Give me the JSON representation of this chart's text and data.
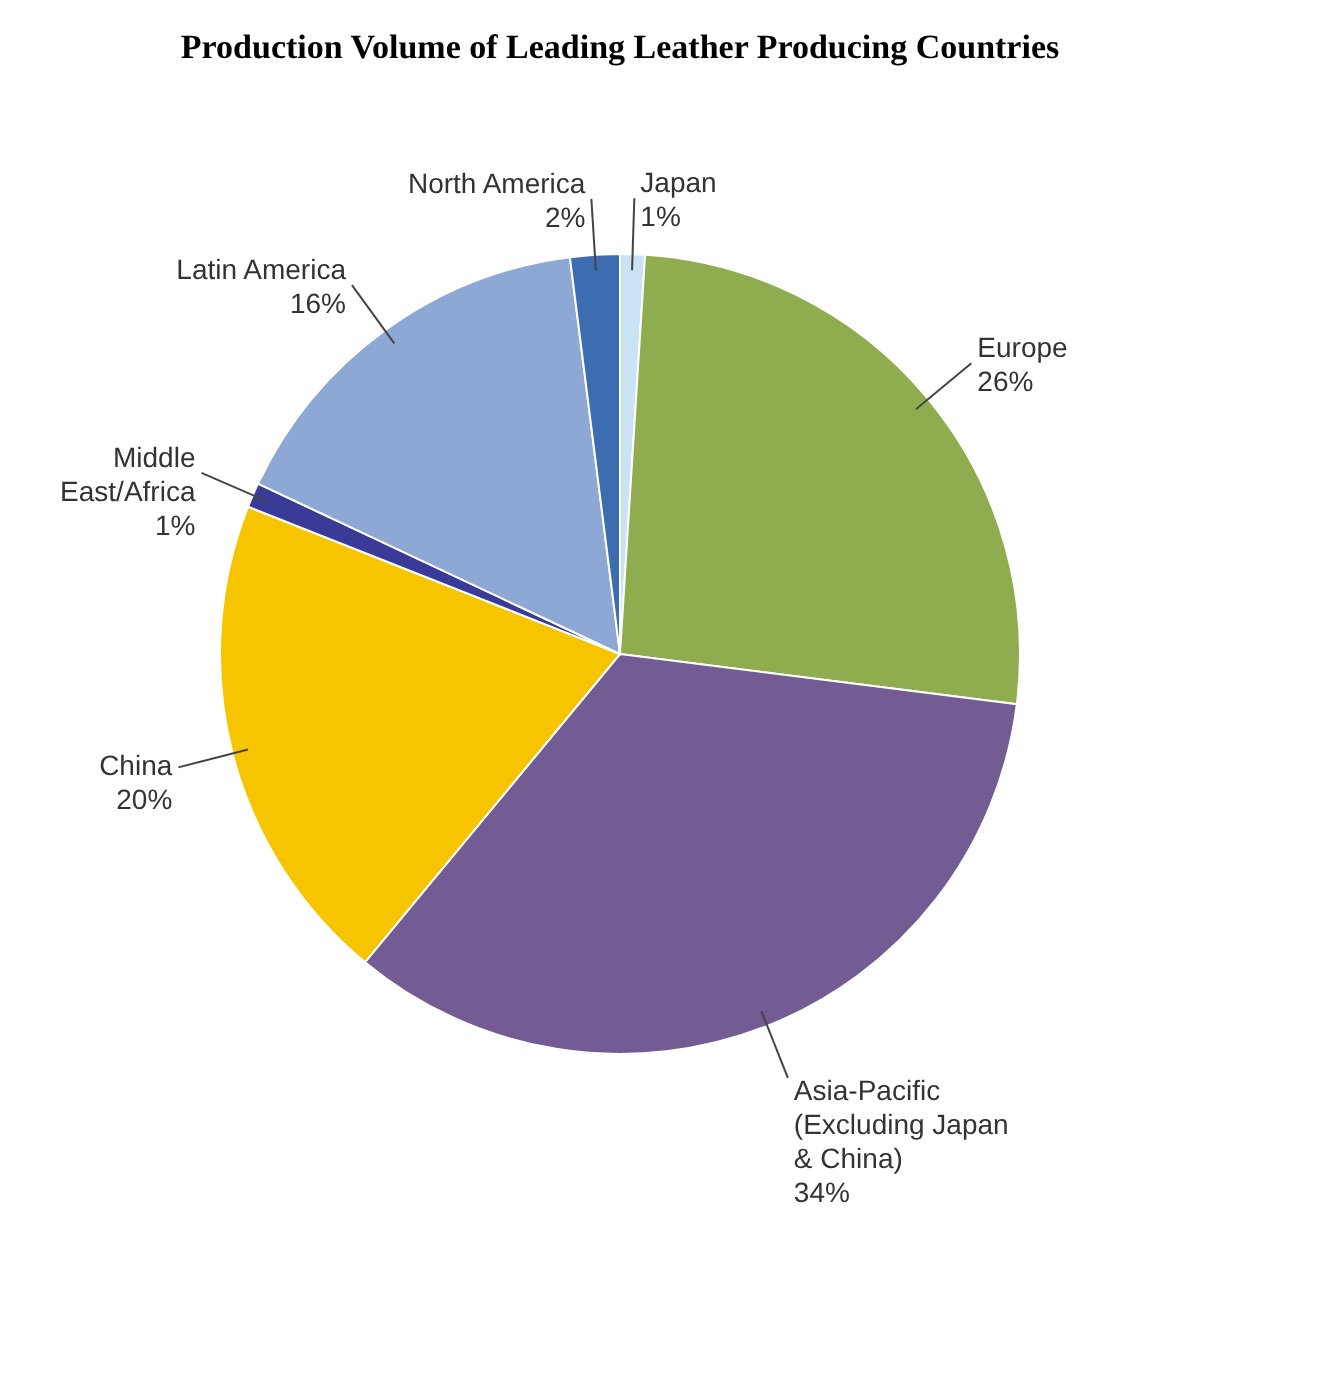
{
  "chart_data": {
    "type": "pie",
    "title": "Production Volume of Leading Leather Producing Countries",
    "categories": [
      "Japan",
      "Europe",
      "Asia-Pacific (Excluding Japan & China)",
      "China",
      "Middle East/Africa",
      "Latin America",
      "North America"
    ],
    "values": [
      1,
      26,
      34,
      20,
      1,
      16,
      2
    ],
    "colors": [
      "#c9e3f4",
      "#8fac4e",
      "#735b93",
      "#f7c500",
      "#3a3b98",
      "#8ea8d5",
      "#3b6db0"
    ],
    "value_labels": [
      "1%",
      "26%",
      "34%",
      "20%",
      "1%",
      "16%",
      "2%"
    ]
  }
}
